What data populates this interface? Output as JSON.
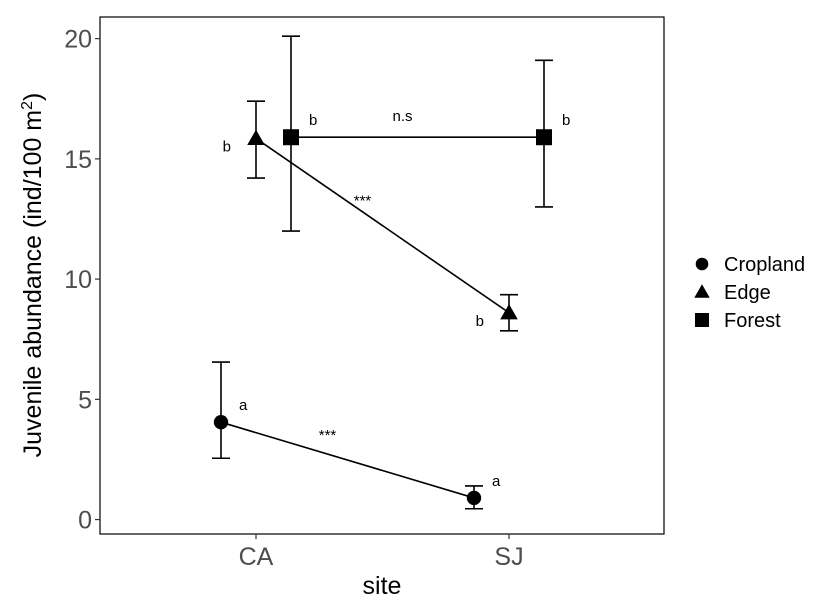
{
  "chart_data": {
    "type": "scatter",
    "xlabel": "site",
    "ylabel": "Juvenile abundance (ind/100 m",
    "ylabel_sup": "2",
    "ylabel_close": ")",
    "categories": [
      "CA",
      "SJ"
    ],
    "ylim": [
      -0.6,
      20.9
    ],
    "yticks": [
      0,
      5,
      10,
      15,
      20
    ],
    "grid": false,
    "legend_position": "right",
    "series": [
      {
        "name": "Cropland",
        "shape": "circle",
        "points": [
          {
            "x": "CA",
            "y": 4.05,
            "ymin": 2.55,
            "ymax": 6.55,
            "label": "a"
          },
          {
            "x": "SJ",
            "y": 0.9,
            "ymin": 0.45,
            "ymax": 1.4,
            "label": "a"
          }
        ]
      },
      {
        "name": "Edge",
        "shape": "triangle",
        "points": [
          {
            "x": "CA",
            "y": 15.85,
            "ymin": 14.2,
            "ymax": 17.4,
            "label": "b"
          },
          {
            "x": "SJ",
            "y": 8.6,
            "ymin": 7.85,
            "ymax": 9.35,
            "label": "b"
          }
        ]
      },
      {
        "name": "Forest",
        "shape": "square",
        "points": [
          {
            "x": "CA",
            "y": 15.9,
            "ymin": 12.0,
            "ymax": 20.1,
            "label": "b"
          },
          {
            "x": "SJ",
            "y": 15.9,
            "ymin": 13.0,
            "ymax": 19.1,
            "label": "b"
          }
        ]
      }
    ],
    "comparisons": [
      {
        "series": "Forest",
        "text": "n.s"
      },
      {
        "series": "Edge",
        "text": "***"
      },
      {
        "series": "Cropland",
        "text": "***"
      }
    ]
  }
}
